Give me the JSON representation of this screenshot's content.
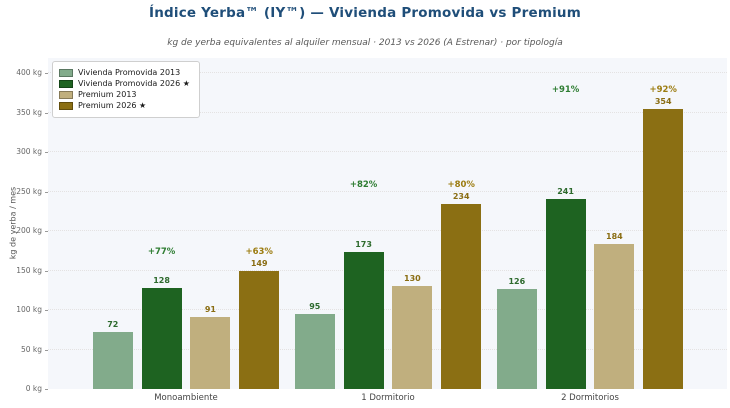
{
  "header": {
    "title": "Índice Yerba™ (IY™) — Vivienda Promovida vs Premium",
    "subtitle": "kg de yerba equivalentes al alquiler mensual · 2013 vs 2026 (A Estrenar) · por tipología"
  },
  "colors": {
    "title": "#1f4e79",
    "subtitle": "#595959",
    "plot_background": "#f5f7fb",
    "gridline": "#e4e2e2",
    "vivienda_2013": "#82ab8b",
    "vivienda_2026": "#1e6321",
    "premium_2013": "#c0af7e",
    "premium_2026": "#8b6f13",
    "green_label": "#2d6a2d",
    "gold_label": "#8a6d13",
    "green_pct": "#2e7d32",
    "gold_pct": "#9c7c10"
  },
  "chart_data": {
    "type": "bar",
    "title": "Índice Yerba™ (IY™) — Vivienda Promovida vs Premium",
    "subtitle": "kg de yerba equivalentes al alquiler mensual · 2013 vs 2026 (A Estrenar) · por tipología",
    "categories": [
      "Monoambiente",
      "1 Dormitorio",
      "2 Dormitorios"
    ],
    "series": [
      {
        "name": "Vivienda Promovida 2013",
        "color": "#82ab8b",
        "label_color": "#2d6a2d",
        "values": [
          72,
          95,
          126
        ]
      },
      {
        "name": "Vivienda Promovida 2026 ★",
        "color": "#1e6321",
        "label_color": "#2d6a2d",
        "values": [
          128,
          173,
          241
        ]
      },
      {
        "name": "Premium 2013",
        "color": "#c0af7e",
        "label_color": "#8a6d13",
        "values": [
          91,
          130,
          184
        ]
      },
      {
        "name": "Premium 2026 ★",
        "color": "#8b6f13",
        "label_color": "#8a6d13",
        "values": [
          149,
          234,
          354
        ]
      }
    ],
    "annotations": [
      {
        "cat": 0,
        "series": 1,
        "label": "+77%",
        "color": "#2e7d32"
      },
      {
        "cat": 0,
        "series": 3,
        "label": "+63%",
        "color": "#9c7c10"
      },
      {
        "cat": 1,
        "series": 1,
        "label": "+82%",
        "color": "#2e7d32"
      },
      {
        "cat": 1,
        "series": 3,
        "label": "+80%",
        "color": "#9c7c10"
      },
      {
        "cat": 2,
        "series": 1,
        "label": "+91%",
        "color": "#2e7d32"
      },
      {
        "cat": 2,
        "series": 3,
        "label": "+92%",
        "color": "#9c7c10"
      }
    ],
    "ylabel": "kg de yerba / mes",
    "xlabel": "",
    "yticks": [
      "0 kg",
      "50 kg",
      "100 kg",
      "150 kg",
      "200 kg",
      "250 kg",
      "300 kg",
      "350 kg",
      "400 kg"
    ],
    "ytick_values": [
      0,
      50,
      100,
      150,
      200,
      250,
      300,
      350,
      400
    ],
    "ylim": [
      0,
      420
    ],
    "grid": true,
    "legend_position": "upper-left"
  }
}
